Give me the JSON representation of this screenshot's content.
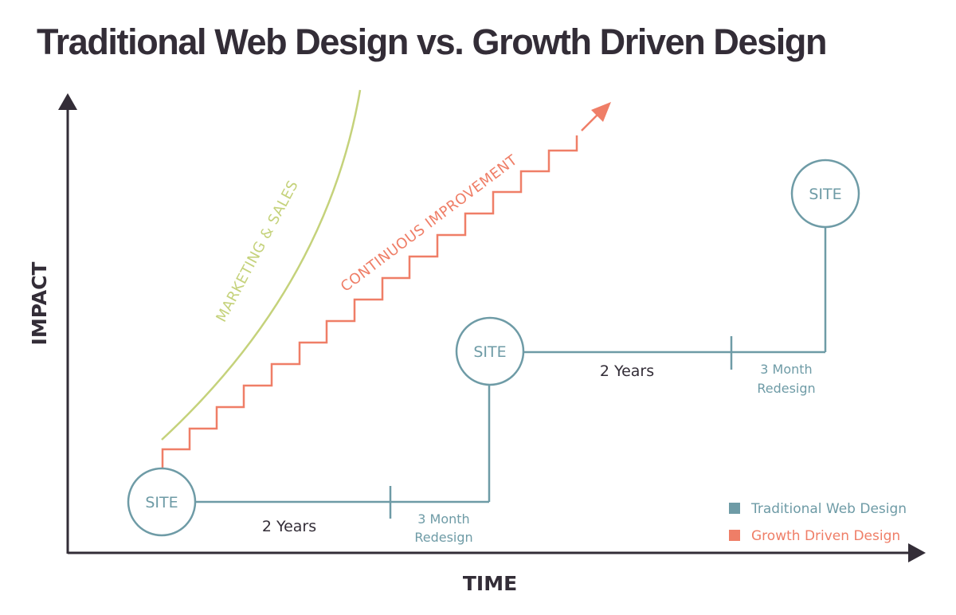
{
  "title": "Traditional Web Design vs. Growth Driven Design",
  "axes": {
    "y_label": "IMPACT",
    "x_label": "TIME"
  },
  "nodes": {
    "site_1": "SITE",
    "site_2": "SITE",
    "site_3": "SITE"
  },
  "intervals": {
    "years_1": "2 Years",
    "redesign_1": [
      "3 Month",
      "Redesign"
    ],
    "years_2": "2 Years",
    "redesign_2": [
      "3 Month",
      "Redesign"
    ]
  },
  "curves": {
    "marketing": "MARKETING & SALES",
    "continuous": "CONTINUOUS IMPROVEMENT"
  },
  "legend": {
    "items": [
      {
        "label": "Traditional Web Design",
        "color": "#6e9ba6"
      },
      {
        "label": "Growth Driven Design",
        "color": "#ef7e67"
      }
    ]
  },
  "colors": {
    "traditional": "#6e9ba6",
    "growth": "#ef7e67",
    "marketing": "#c5d27b",
    "axis": "#332d37"
  }
}
